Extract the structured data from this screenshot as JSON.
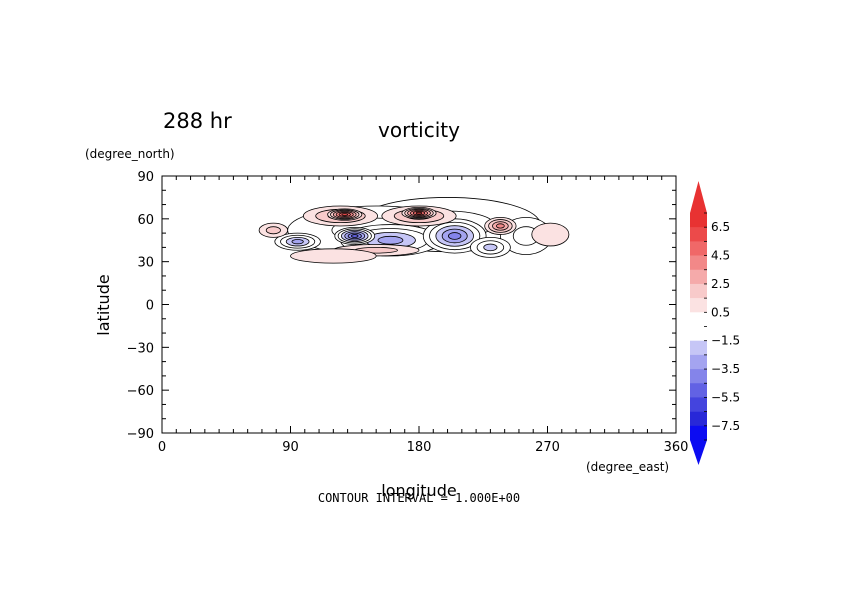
{
  "chart_data": {
    "type": "contour",
    "time_label": "288 hr",
    "title": "vorticity",
    "xlabel": "longitude",
    "ylabel": "latitude",
    "x_unit": "(degree_east)",
    "y_unit": "(degree_north)",
    "footer": "CONTOUR INTERVAL = 1.000E+00",
    "xlim": [
      0,
      360
    ],
    "ylim": [
      -90,
      90
    ],
    "x_ticks": [
      "0",
      "90",
      "180",
      "270",
      "360"
    ],
    "y_ticks": [
      "90",
      "60",
      "30",
      "0",
      "−30",
      "−60",
      "−90"
    ],
    "colorbar": {
      "labels": [
        "6.5",
        "4.5",
        "2.5",
        "0.5",
        "−1.5",
        "−3.5",
        "−5.5",
        "−7.5"
      ],
      "levels": [
        7,
        6,
        5,
        4,
        3,
        2,
        1,
        0,
        -1,
        -2,
        -3,
        -4,
        -5,
        -6,
        -7,
        -8
      ],
      "colors": [
        "#e83232",
        "#ec4a4a",
        "#f06868",
        "#f28888",
        "#f5aaaa",
        "#f8caca",
        "#fbe2e2",
        "#ffffff",
        "#ffffff",
        "#c6c6f6",
        "#a4a4f0",
        "#8484ea",
        "#6262e4",
        "#4444de",
        "#2828d8",
        "#0c0cf2"
      ],
      "top_arrow_color": "#e83232",
      "bottom_arrow_color": "#0c0cf2"
    },
    "features": [
      {
        "type": "neg",
        "lon": 200,
        "lat": 56,
        "rlon": 65,
        "rlat": 19,
        "level": -1.5
      },
      {
        "type": "neg",
        "lon": 150,
        "lat": 52,
        "rlon": 62,
        "rlat": 17,
        "level": -1.5
      },
      {
        "type": "neg",
        "lon": 160,
        "lat": 45,
        "rlon": 35,
        "rlat": 11,
        "level": -3.5
      },
      {
        "type": "neg",
        "lon": 205,
        "lat": 48,
        "rlon": 22,
        "rlat": 12,
        "level": -4.5
      },
      {
        "type": "neg",
        "lon": 95,
        "lat": 44,
        "rlon": 16,
        "rlat": 6,
        "level": -3.5
      },
      {
        "type": "neg",
        "lon": 135,
        "lat": 48,
        "rlon": 14,
        "rlat": 6,
        "level": -5.5
      },
      {
        "type": "neg",
        "lon": 255,
        "lat": 48,
        "rlon": 18,
        "rlat": 13,
        "level": -1.5
      },
      {
        "type": "neg",
        "lon": 230,
        "lat": 40,
        "rlon": 14,
        "rlat": 7,
        "level": -2.5
      },
      {
        "type": "pos",
        "lon": 78,
        "lat": 52,
        "rlon": 10,
        "rlat": 5,
        "level": 1.5
      },
      {
        "type": "pos",
        "lon": 125,
        "lat": 62,
        "rlon": 26,
        "rlat": 7,
        "level": 2.5
      },
      {
        "type": "pos",
        "lon": 128,
        "lat": 63,
        "rlon": 12,
        "rlat": 4,
        "level": 5.5
      },
      {
        "type": "pos",
        "lon": 180,
        "lat": 62,
        "rlon": 26,
        "rlat": 7,
        "level": 2.5
      },
      {
        "type": "pos",
        "lon": 180,
        "lat": 64,
        "rlon": 12,
        "rlat": 4,
        "level": 5.5
      },
      {
        "type": "pos",
        "lon": 237,
        "lat": 55,
        "rlon": 11,
        "rlat": 6,
        "level": 3.5
      },
      {
        "type": "pos",
        "lon": 150,
        "lat": 38,
        "rlon": 30,
        "rlat": 4,
        "level": 1.5
      },
      {
        "type": "pos",
        "lon": 272,
        "lat": 49,
        "rlon": 13,
        "rlat": 8,
        "level": 0.5
      },
      {
        "type": "pos",
        "lon": 120,
        "lat": 34,
        "rlon": 30,
        "rlat": 5,
        "level": 0.5
      }
    ]
  }
}
